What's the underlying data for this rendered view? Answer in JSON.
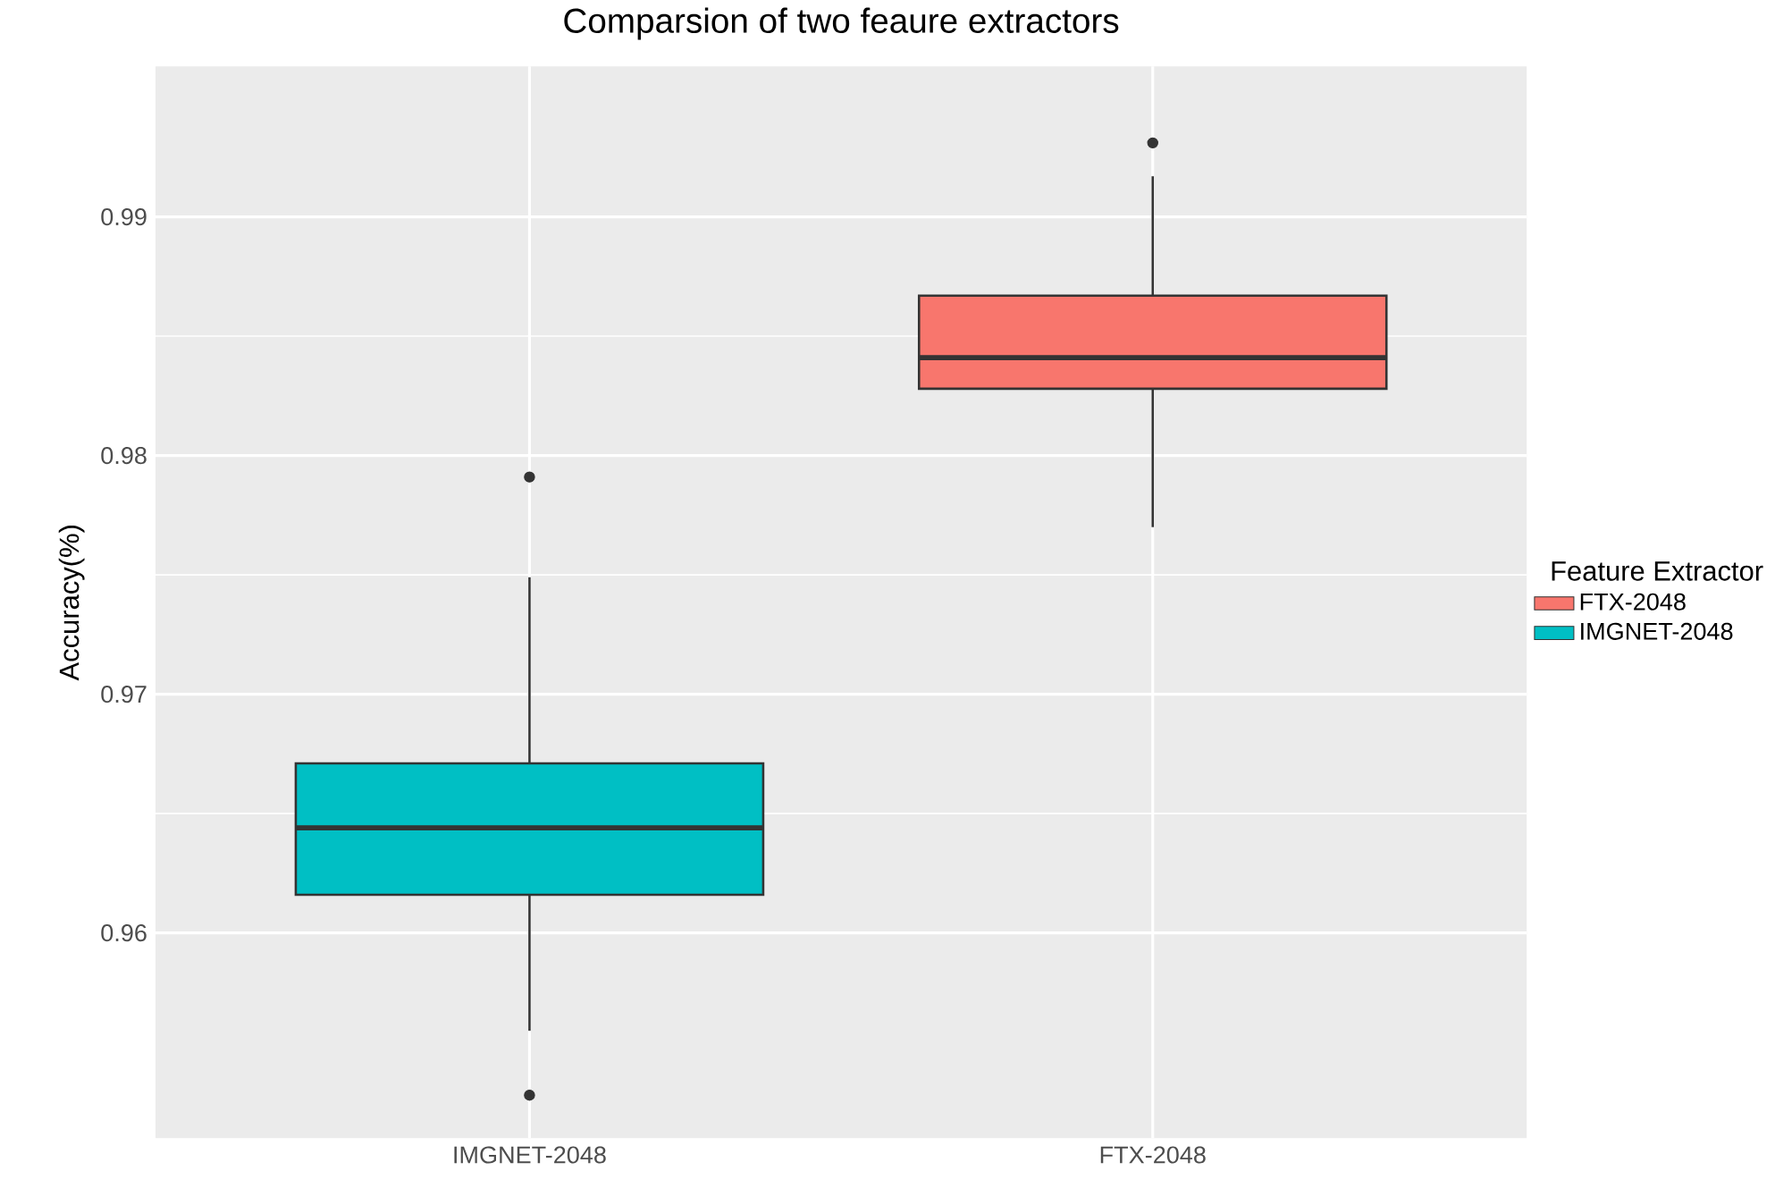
{
  "chart_data": {
    "type": "box",
    "title": "Comparsion of two feaure extractors",
    "ylabel": "Accuracy(%)",
    "legend_title": "Feature Extractor",
    "categories": [
      "IMGNET-2048",
      "FTX-2048"
    ],
    "series": [
      {
        "name": "FTX-2048",
        "color": "#f8766d",
        "boxes": [
          null,
          {
            "low": 0.977,
            "q1": 0.9828,
            "median": 0.9841,
            "q3": 0.9867,
            "high": 0.9917,
            "outliers": [
              0.9931
            ]
          }
        ]
      },
      {
        "name": "IMGNET-2048",
        "color": "#00bfc4",
        "boxes": [
          {
            "low": 0.9559,
            "q1": 0.9616,
            "median": 0.9644,
            "q3": 0.9671,
            "high": 0.9749,
            "outliers": [
              0.9791,
              0.9532
            ]
          },
          null
        ]
      }
    ],
    "ylim": [
      0.9514,
      0.9963
    ],
    "yticks": [
      0.96,
      0.97,
      0.98,
      0.99
    ],
    "grid": true,
    "legend": "right"
  }
}
